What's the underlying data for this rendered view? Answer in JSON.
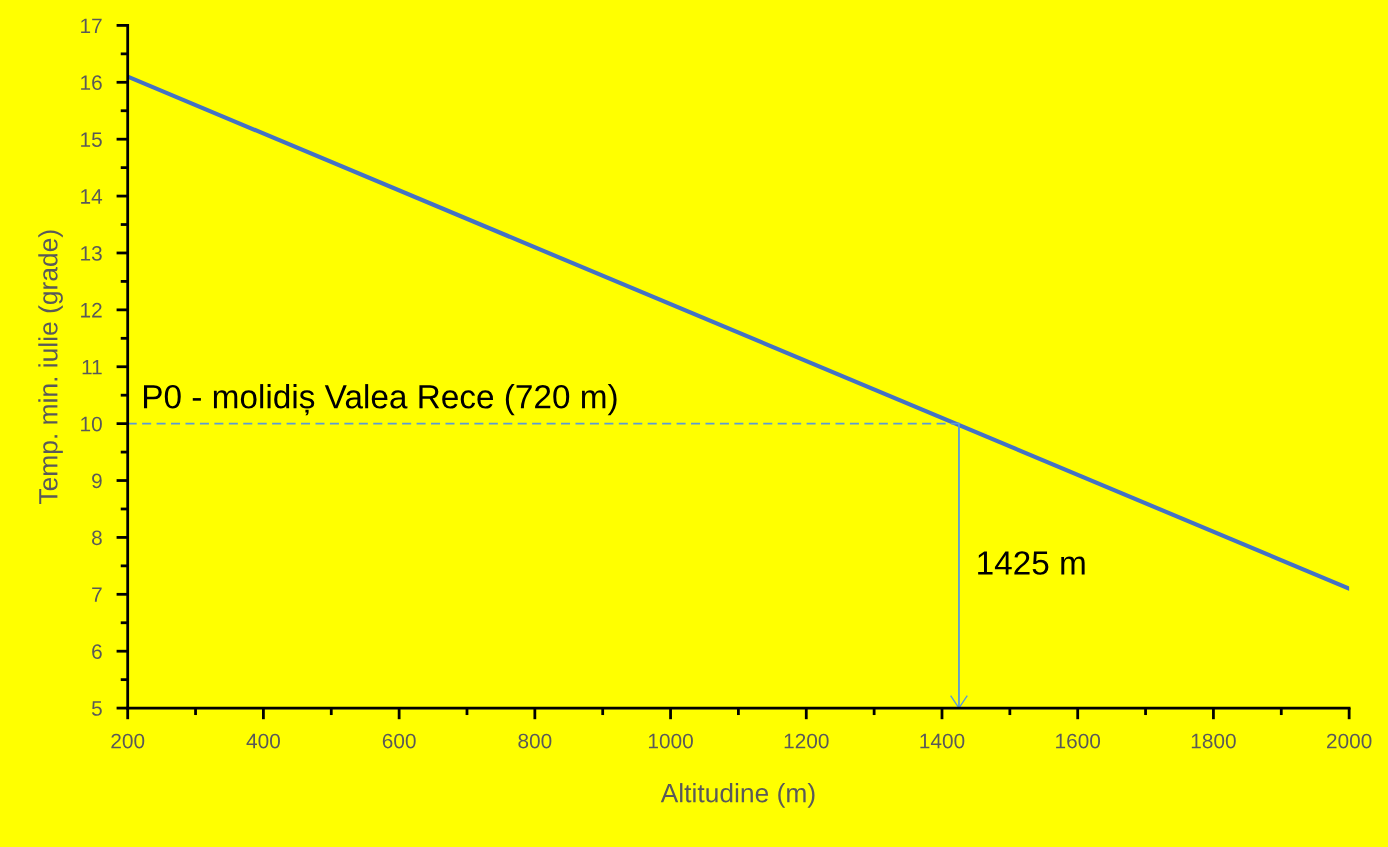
{
  "chart_data": {
    "type": "line",
    "xlabel": "Altitudine (m)",
    "ylabel": "Temp. min. iulie (grade)",
    "x": [
      200,
      2000
    ],
    "series": [
      {
        "color": "#4472c4",
        "values": [
          16.1,
          7.1
        ]
      }
    ],
    "xlim": [
      200,
      2000
    ],
    "ylim": [
      5,
      17
    ],
    "xticks": [
      200,
      400,
      600,
      800,
      1000,
      1200,
      1400,
      1600,
      1800,
      2000
    ],
    "yticks": [
      5,
      6,
      7,
      8,
      9,
      10,
      11,
      12,
      13,
      14,
      15,
      16,
      17
    ],
    "ref_lines": [
      {
        "axis": "y",
        "value": 10,
        "color": "#5b9bd5",
        "line_style": "dashed"
      },
      {
        "axis": "x",
        "value": 1425,
        "label": "1425 m",
        "color": "#5b9bd5",
        "line_style": "solid"
      }
    ],
    "annotations": [
      {
        "text": "P0 - molidiș Valea Rece (720 m)",
        "x": 220,
        "y": 10
      }
    ],
    "grid": false,
    "legend": false
  }
}
